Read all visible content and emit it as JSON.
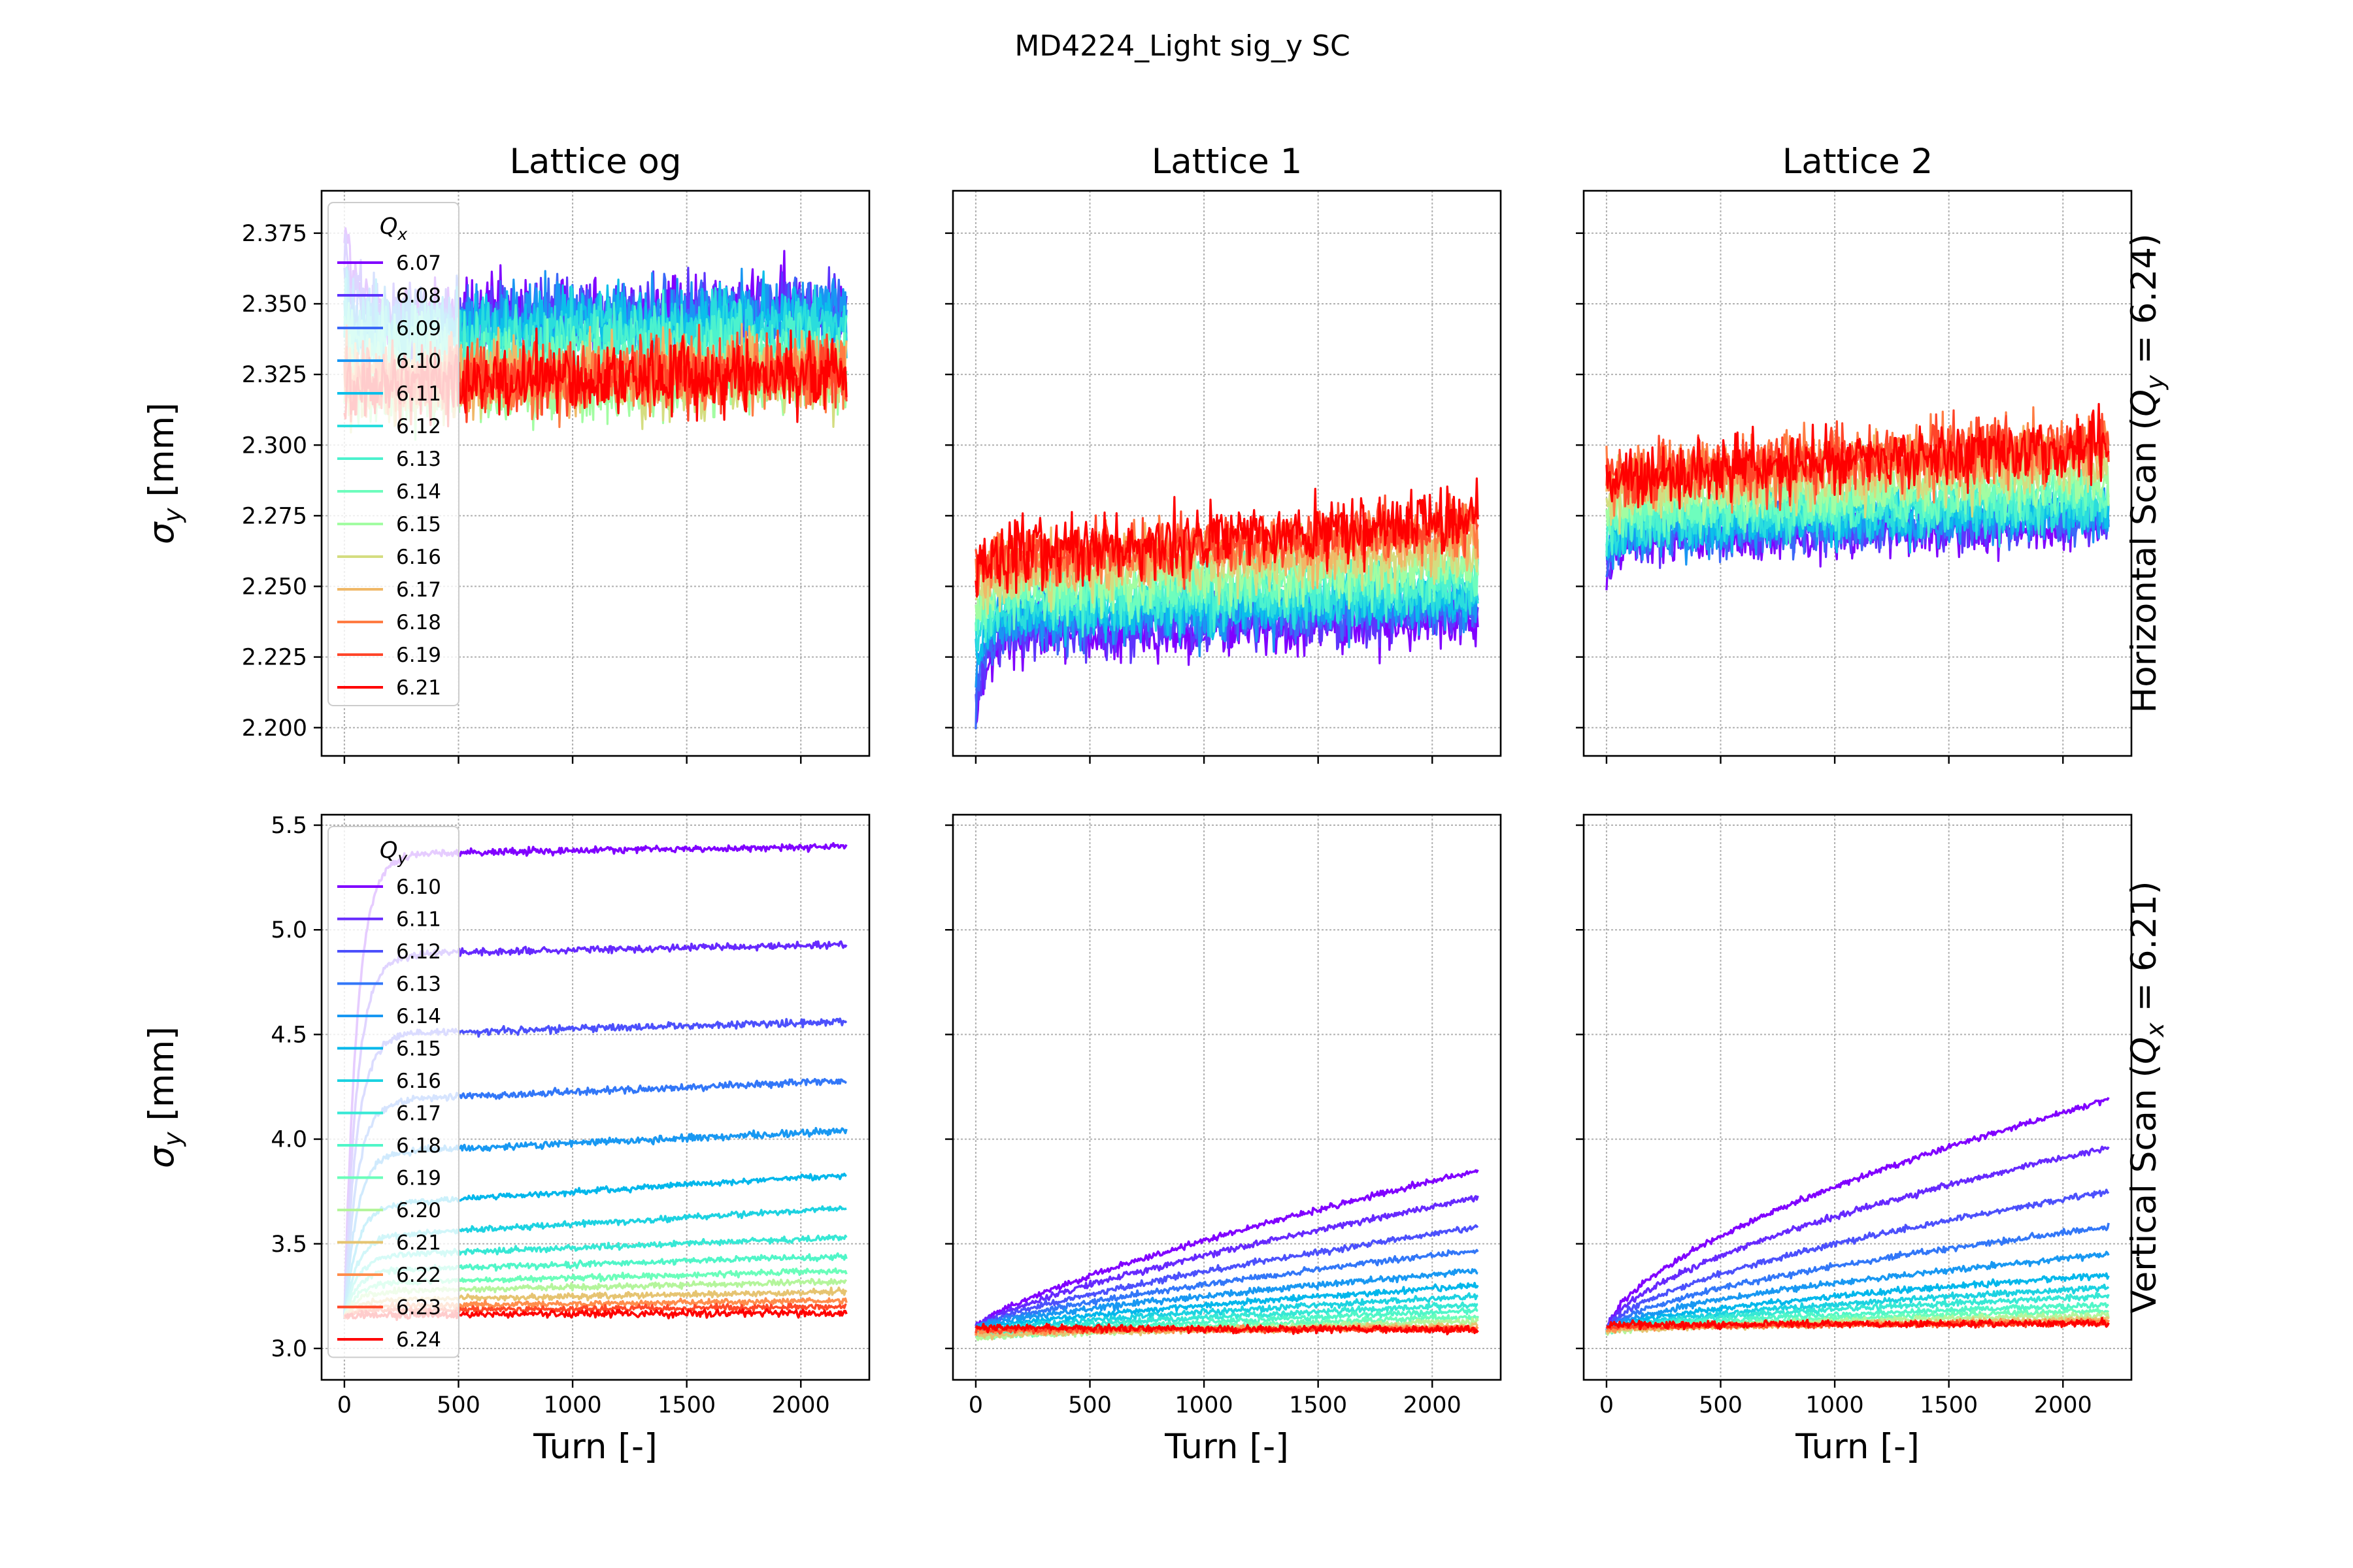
{
  "suptitle": "MD4224_Light sig_y SC",
  "columns": [
    "Lattice og",
    "Lattice 1",
    "Lattice 2"
  ],
  "rows": [
    {
      "label": "Horizontal Scan (Q_y = 6.24)",
      "label_parts": {
        "pre": "Horizontal Scan (",
        "sym": "Q",
        "sub": "y",
        "post": " = 6.24)"
      }
    },
    {
      "label": "Vertical Scan (Q_x = 6.21)",
      "label_parts": {
        "pre": "Vertical Scan (",
        "sym": "Q",
        "sub": "x",
        "post": " = 6.21)"
      }
    }
  ],
  "ylabel": {
    "sym": "σ",
    "sub": "y",
    "unit": " [mm]"
  },
  "xlabel": "Turn [-]",
  "chart_data": [
    {
      "type": "line",
      "row": 0,
      "title": "Lattice og",
      "xlabel": "",
      "ylabel": "σ_y [mm]",
      "xlim": [
        -100,
        2300
      ],
      "ylim": [
        2.19,
        2.39
      ],
      "xticks": [
        0,
        500,
        1000,
        1500,
        2000
      ],
      "yticks": [
        2.2,
        2.225,
        2.25,
        2.275,
        2.3,
        2.325,
        2.35,
        2.375
      ],
      "ytick_labels": [
        "2.200",
        "2.225",
        "2.250",
        "2.275",
        "2.300",
        "2.325",
        "2.350",
        "2.375"
      ],
      "grid": true,
      "legend": {
        "title_sym": "Q",
        "title_sub": "x",
        "placement": "upper-left"
      },
      "series": [
        {
          "name": "6.07",
          "color": "#8000ff",
          "start": 2.38,
          "plateau": 2.345,
          "end": 2.35,
          "noise": 0.009
        },
        {
          "name": "6.08",
          "color": "#5d35fd",
          "start": 2.37,
          "plateau": 2.344,
          "end": 2.349,
          "noise": 0.009
        },
        {
          "name": "6.09",
          "color": "#3a68f8",
          "start": 2.36,
          "plateau": 2.343,
          "end": 2.348,
          "noise": 0.009
        },
        {
          "name": "6.10",
          "color": "#1996f3",
          "start": 2.35,
          "plateau": 2.342,
          "end": 2.347,
          "noise": 0.009
        },
        {
          "name": "6.11",
          "color": "#0bbfea",
          "start": 2.35,
          "plateau": 2.34,
          "end": 2.345,
          "noise": 0.009
        },
        {
          "name": "6.12",
          "color": "#2adddd",
          "start": 2.345,
          "plateau": 2.337,
          "end": 2.342,
          "noise": 0.009
        },
        {
          "name": "6.13",
          "color": "#4cf2ce",
          "start": 2.34,
          "plateau": 2.334,
          "end": 2.338,
          "noise": 0.009
        },
        {
          "name": "6.14",
          "color": "#6efdbd",
          "start": 2.33,
          "plateau": 2.326,
          "end": 2.331,
          "noise": 0.009
        },
        {
          "name": "6.15",
          "color": "#a2fda2",
          "start": 2.32,
          "plateau": 2.318,
          "end": 2.322,
          "noise": 0.009
        },
        {
          "name": "6.16",
          "color": "#d4dd80",
          "start": 2.32,
          "plateau": 2.32,
          "end": 2.324,
          "noise": 0.009
        },
        {
          "name": "6.17",
          "color": "#f0b867",
          "start": 2.325,
          "plateau": 2.323,
          "end": 2.327,
          "noise": 0.009
        },
        {
          "name": "6.18",
          "color": "#ff7c43",
          "start": 2.325,
          "plateau": 2.322,
          "end": 2.327,
          "noise": 0.009
        },
        {
          "name": "6.19",
          "color": "#ff462a",
          "start": 2.325,
          "plateau": 2.322,
          "end": 2.326,
          "noise": 0.009
        },
        {
          "name": "6.21",
          "color": "#ff0000",
          "start": 2.32,
          "plateau": 2.321,
          "end": 2.326,
          "noise": 0.009
        }
      ]
    },
    {
      "type": "line",
      "row": 0,
      "title": "Lattice 1",
      "xlabel": "",
      "ylabel": "",
      "xlim": [
        -100,
        2300
      ],
      "ylim": [
        2.19,
        2.39
      ],
      "xticks": [
        0,
        500,
        1000,
        1500,
        2000
      ],
      "yticks": [
        2.2,
        2.225,
        2.25,
        2.275,
        2.3,
        2.325,
        2.35,
        2.375
      ],
      "grid": true,
      "series": [
        {
          "name": "6.07",
          "color": "#8000ff",
          "start": 2.2,
          "plateau": 2.232,
          "end": 2.238,
          "noise": 0.007
        },
        {
          "name": "6.08",
          "color": "#5d35fd",
          "start": 2.205,
          "plateau": 2.234,
          "end": 2.24,
          "noise": 0.007
        },
        {
          "name": "6.09",
          "color": "#3a68f8",
          "start": 2.21,
          "plateau": 2.236,
          "end": 2.242,
          "noise": 0.007
        },
        {
          "name": "6.10",
          "color": "#1996f3",
          "start": 2.215,
          "plateau": 2.238,
          "end": 2.244,
          "noise": 0.007
        },
        {
          "name": "6.11",
          "color": "#0bbfea",
          "start": 2.22,
          "plateau": 2.24,
          "end": 2.246,
          "noise": 0.007
        },
        {
          "name": "6.12",
          "color": "#2adddd",
          "start": 2.225,
          "plateau": 2.242,
          "end": 2.248,
          "noise": 0.007
        },
        {
          "name": "6.13",
          "color": "#4cf2ce",
          "start": 2.23,
          "plateau": 2.245,
          "end": 2.252,
          "noise": 0.007
        },
        {
          "name": "6.14",
          "color": "#6efdbd",
          "start": 2.235,
          "plateau": 2.247,
          "end": 2.255,
          "noise": 0.007
        },
        {
          "name": "6.15",
          "color": "#a2fda2",
          "start": 2.24,
          "plateau": 2.25,
          "end": 2.258,
          "noise": 0.007
        },
        {
          "name": "6.16",
          "color": "#d4dd80",
          "start": 2.245,
          "plateau": 2.253,
          "end": 2.262,
          "noise": 0.007
        },
        {
          "name": "6.17",
          "color": "#f0b867",
          "start": 2.25,
          "plateau": 2.256,
          "end": 2.266,
          "noise": 0.007
        },
        {
          "name": "6.18",
          "color": "#ff7c43",
          "start": 2.255,
          "plateau": 2.258,
          "end": 2.27,
          "noise": 0.007
        },
        {
          "name": "6.19",
          "color": "#ff462a",
          "start": 2.255,
          "plateau": 2.259,
          "end": 2.272,
          "noise": 0.007
        },
        {
          "name": "6.21",
          "color": "#ff0000",
          "start": 2.255,
          "plateau": 2.26,
          "end": 2.274,
          "noise": 0.008
        }
      ]
    },
    {
      "type": "line",
      "row": 0,
      "title": "Lattice 2",
      "xlabel": "",
      "ylabel": "",
      "xlim": [
        -100,
        2300
      ],
      "ylim": [
        2.19,
        2.39
      ],
      "xticks": [
        0,
        500,
        1000,
        1500,
        2000
      ],
      "yticks": [
        2.2,
        2.225,
        2.25,
        2.275,
        2.3,
        2.325,
        2.35,
        2.375
      ],
      "grid": true,
      "series": [
        {
          "name": "6.07",
          "color": "#8000ff",
          "start": 2.25,
          "plateau": 2.265,
          "end": 2.272,
          "noise": 0.006
        },
        {
          "name": "6.08",
          "color": "#5d35fd",
          "start": 2.255,
          "plateau": 2.266,
          "end": 2.273,
          "noise": 0.006
        },
        {
          "name": "6.09",
          "color": "#3a68f8",
          "start": 2.26,
          "plateau": 2.268,
          "end": 2.275,
          "noise": 0.006
        },
        {
          "name": "6.10",
          "color": "#1996f3",
          "start": 2.262,
          "plateau": 2.269,
          "end": 2.276,
          "noise": 0.006
        },
        {
          "name": "6.11",
          "color": "#0bbfea",
          "start": 2.264,
          "plateau": 2.27,
          "end": 2.277,
          "noise": 0.006
        },
        {
          "name": "6.12",
          "color": "#2adddd",
          "start": 2.266,
          "plateau": 2.272,
          "end": 2.279,
          "noise": 0.006
        },
        {
          "name": "6.13",
          "color": "#4cf2ce",
          "start": 2.268,
          "plateau": 2.274,
          "end": 2.281,
          "noise": 0.006
        },
        {
          "name": "6.14",
          "color": "#6efdbd",
          "start": 2.27,
          "plateau": 2.276,
          "end": 2.284,
          "noise": 0.006
        },
        {
          "name": "6.15",
          "color": "#a2fda2",
          "start": 2.275,
          "plateau": 2.28,
          "end": 2.288,
          "noise": 0.006
        },
        {
          "name": "6.16",
          "color": "#d4dd80",
          "start": 2.28,
          "plateau": 2.284,
          "end": 2.293,
          "noise": 0.007
        },
        {
          "name": "6.17",
          "color": "#f0b867",
          "start": 2.285,
          "plateau": 2.287,
          "end": 2.298,
          "noise": 0.007
        },
        {
          "name": "6.18",
          "color": "#ff7c43",
          "start": 2.288,
          "plateau": 2.289,
          "end": 2.301,
          "noise": 0.008
        },
        {
          "name": "6.19",
          "color": "#ff462a",
          "start": 2.288,
          "plateau": 2.289,
          "end": 2.301,
          "noise": 0.008
        },
        {
          "name": "6.21",
          "color": "#ff0000",
          "start": 2.288,
          "plateau": 2.289,
          "end": 2.3,
          "noise": 0.008
        }
      ]
    },
    {
      "type": "line",
      "row": 1,
      "title": "",
      "xlabel": "Turn [-]",
      "ylabel": "σ_y [mm]",
      "xlim": [
        -100,
        2300
      ],
      "ylim": [
        2.85,
        5.55
      ],
      "xticks": [
        0,
        500,
        1000,
        1500,
        2000
      ],
      "yticks": [
        3.0,
        3.5,
        4.0,
        4.5,
        5.0,
        5.5
      ],
      "ytick_labels": [
        "3.0",
        "3.5",
        "4.0",
        "4.5",
        "5.0",
        "5.5"
      ],
      "grid": true,
      "legend": {
        "title_sym": "Q",
        "title_sub": "y",
        "placement": "upper-left"
      },
      "series": [
        {
          "name": "6.10",
          "color": "#8000ff",
          "start": 3.15,
          "plateau": 5.36,
          "end": 5.4,
          "noise": 0.012
        },
        {
          "name": "6.11",
          "color": "#6629fe",
          "start": 3.15,
          "plateau": 4.88,
          "end": 4.93,
          "noise": 0.012
        },
        {
          "name": "6.12",
          "color": "#4c50fc",
          "start": 3.15,
          "plateau": 4.5,
          "end": 4.56,
          "noise": 0.012
        },
        {
          "name": "6.13",
          "color": "#3277f8",
          "start": 3.15,
          "plateau": 4.18,
          "end": 4.28,
          "noise": 0.012
        },
        {
          "name": "6.14",
          "color": "#1898f2",
          "start": 3.15,
          "plateau": 3.93,
          "end": 4.04,
          "noise": 0.012
        },
        {
          "name": "6.15",
          "color": "#02b7eb",
          "start": 3.15,
          "plateau": 3.68,
          "end": 3.83,
          "noise": 0.01
        },
        {
          "name": "6.16",
          "color": "#1cd2e1",
          "start": 3.15,
          "plateau": 3.53,
          "end": 3.67,
          "noise": 0.01
        },
        {
          "name": "6.17",
          "color": "#36e8d5",
          "start": 3.15,
          "plateau": 3.44,
          "end": 3.53,
          "noise": 0.01
        },
        {
          "name": "6.18",
          "color": "#50f6c8",
          "start": 3.15,
          "plateau": 3.37,
          "end": 3.44,
          "noise": 0.01
        },
        {
          "name": "6.19",
          "color": "#6afeba",
          "start": 3.15,
          "plateau": 3.31,
          "end": 3.37,
          "noise": 0.01
        },
        {
          "name": "6.20",
          "color": "#b4f59b",
          "start": 3.15,
          "plateau": 3.27,
          "end": 3.32,
          "noise": 0.01
        },
        {
          "name": "6.21",
          "color": "#e6c471",
          "start": 3.15,
          "plateau": 3.23,
          "end": 3.27,
          "noise": 0.01
        },
        {
          "name": "6.22",
          "color": "#ff8d4c",
          "start": 3.15,
          "plateau": 3.2,
          "end": 3.23,
          "noise": 0.01
        },
        {
          "name": "6.23",
          "color": "#ff4727",
          "start": 3.15,
          "plateau": 3.18,
          "end": 3.2,
          "noise": 0.01
        },
        {
          "name": "6.24",
          "color": "#ff0000",
          "start": 3.15,
          "plateau": 3.16,
          "end": 3.17,
          "noise": 0.012
        }
      ]
    },
    {
      "type": "line",
      "row": 1,
      "title": "",
      "xlabel": "Turn [-]",
      "ylabel": "",
      "xlim": [
        -100,
        2300
      ],
      "ylim": [
        2.85,
        5.55
      ],
      "xticks": [
        0,
        500,
        1000,
        1500,
        2000
      ],
      "yticks": [
        3.0,
        3.5,
        4.0,
        4.5,
        5.0,
        5.5
      ],
      "grid": true,
      "series": [
        {
          "name": "6.10",
          "color": "#8000ff",
          "start": 3.1,
          "end": 3.85,
          "noise": 0.01
        },
        {
          "name": "6.11",
          "color": "#6629fe",
          "start": 3.1,
          "end": 3.72,
          "noise": 0.01
        },
        {
          "name": "6.12",
          "color": "#4c50fc",
          "start": 3.1,
          "end": 3.58,
          "noise": 0.01
        },
        {
          "name": "6.13",
          "color": "#3277f8",
          "start": 3.1,
          "end": 3.47,
          "noise": 0.01
        },
        {
          "name": "6.14",
          "color": "#1898f2",
          "start": 3.1,
          "end": 3.37,
          "noise": 0.01
        },
        {
          "name": "6.15",
          "color": "#02b7eb",
          "start": 3.09,
          "end": 3.3,
          "noise": 0.01
        },
        {
          "name": "6.16",
          "color": "#1cd2e1",
          "start": 3.08,
          "end": 3.25,
          "noise": 0.01
        },
        {
          "name": "6.17",
          "color": "#36e8d5",
          "start": 3.07,
          "end": 3.21,
          "noise": 0.01
        },
        {
          "name": "6.18",
          "color": "#50f6c8",
          "start": 3.06,
          "end": 3.18,
          "noise": 0.01
        },
        {
          "name": "6.19",
          "color": "#6afeba",
          "start": 3.05,
          "end": 3.15,
          "noise": 0.01
        },
        {
          "name": "6.20",
          "color": "#b4f59b",
          "start": 3.05,
          "end": 3.13,
          "noise": 0.01
        },
        {
          "name": "6.21",
          "color": "#e6c471",
          "start": 3.06,
          "end": 3.11,
          "noise": 0.01
        },
        {
          "name": "6.22",
          "color": "#ff8d4c",
          "start": 3.08,
          "end": 3.1,
          "noise": 0.01
        },
        {
          "name": "6.23",
          "color": "#ff4727",
          "start": 3.09,
          "end": 3.09,
          "noise": 0.01
        },
        {
          "name": "6.24",
          "color": "#ff0000",
          "start": 3.1,
          "end": 3.09,
          "noise": 0.012
        }
      ]
    },
    {
      "type": "line",
      "row": 1,
      "title": "",
      "xlabel": "Turn [-]",
      "ylabel": "",
      "xlim": [
        -100,
        2300
      ],
      "ylim": [
        2.85,
        5.55
      ],
      "xticks": [
        0,
        500,
        1000,
        1500,
        2000
      ],
      "yticks": [
        3.0,
        3.5,
        4.0,
        4.5,
        5.0,
        5.5
      ],
      "grid": true,
      "series": [
        {
          "name": "6.10",
          "color": "#8000ff",
          "start": 3.08,
          "mid": 3.55,
          "end": 4.19,
          "noise": 0.01
        },
        {
          "name": "6.11",
          "color": "#6629fe",
          "start": 3.08,
          "mid": 3.42,
          "end": 3.96,
          "noise": 0.01
        },
        {
          "name": "6.12",
          "color": "#4c50fc",
          "start": 3.08,
          "mid": 3.32,
          "end": 3.75,
          "noise": 0.01
        },
        {
          "name": "6.13",
          "color": "#3277f8",
          "start": 3.08,
          "mid": 3.24,
          "end": 3.58,
          "noise": 0.01
        },
        {
          "name": "6.14",
          "color": "#1898f2",
          "start": 3.08,
          "mid": 3.19,
          "end": 3.45,
          "noise": 0.01
        },
        {
          "name": "6.15",
          "color": "#02b7eb",
          "start": 3.08,
          "mid": 3.16,
          "end": 3.35,
          "noise": 0.01
        },
        {
          "name": "6.16",
          "color": "#1cd2e1",
          "start": 3.08,
          "mid": 3.14,
          "end": 3.29,
          "noise": 0.01
        },
        {
          "name": "6.17",
          "color": "#36e8d5",
          "start": 3.08,
          "mid": 3.13,
          "end": 3.25,
          "noise": 0.01
        },
        {
          "name": "6.18",
          "color": "#50f6c8",
          "start": 3.08,
          "mid": 3.12,
          "end": 3.21,
          "noise": 0.01
        },
        {
          "name": "6.19",
          "color": "#6afeba",
          "start": 3.08,
          "mid": 3.11,
          "end": 3.18,
          "noise": 0.01
        },
        {
          "name": "6.20",
          "color": "#b4f59b",
          "start": 3.08,
          "mid": 3.1,
          "end": 3.16,
          "noise": 0.01
        },
        {
          "name": "6.21",
          "color": "#e6c471",
          "start": 3.08,
          "mid": 3.1,
          "end": 3.14,
          "noise": 0.01
        },
        {
          "name": "6.22",
          "color": "#ff8d4c",
          "start": 3.09,
          "mid": 3.1,
          "end": 3.13,
          "noise": 0.01
        },
        {
          "name": "6.23",
          "color": "#ff4727",
          "start": 3.1,
          "mid": 3.1,
          "end": 3.12,
          "noise": 0.01
        },
        {
          "name": "6.24",
          "color": "#ff0000",
          "start": 3.11,
          "mid": 3.11,
          "end": 3.12,
          "noise": 0.012
        }
      ]
    }
  ]
}
